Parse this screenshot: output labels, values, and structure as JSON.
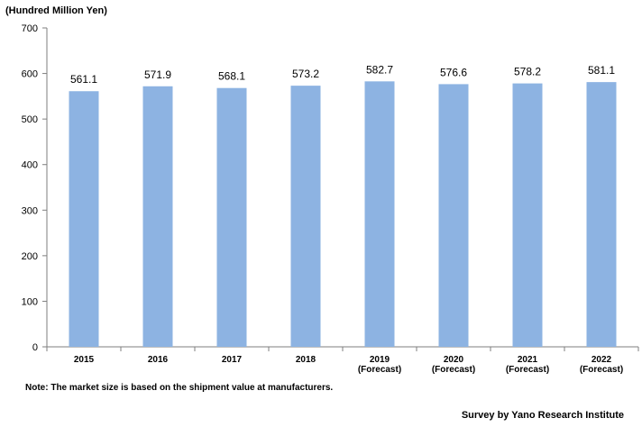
{
  "chart_data": {
    "type": "bar",
    "ylabel": "(Hundred Million Yen)",
    "categories": [
      [
        "2015"
      ],
      [
        "2016"
      ],
      [
        "2017"
      ],
      [
        "2018"
      ],
      [
        "2019",
        "(Forecast)"
      ],
      [
        "2020",
        "(Forecast)"
      ],
      [
        "2021",
        "(Forecast)"
      ],
      [
        "2022",
        "(Forecast)"
      ]
    ],
    "values": [
      561.1,
      571.9,
      568.1,
      573.2,
      582.7,
      576.6,
      578.2,
      581.1
    ],
    "value_labels": [
      "561.1",
      "571.9",
      "568.1",
      "573.2",
      "582.7",
      "576.6",
      "578.2",
      "581.1"
    ],
    "ylim": [
      0,
      700
    ],
    "yticks": [
      0,
      100,
      200,
      300,
      400,
      500,
      600,
      700
    ],
    "grid": false,
    "bar_color": "#8db3e2"
  },
  "note": "Note: The market size is based on the shipment value at manufacturers.",
  "source": "Survey by Yano Research Institute"
}
